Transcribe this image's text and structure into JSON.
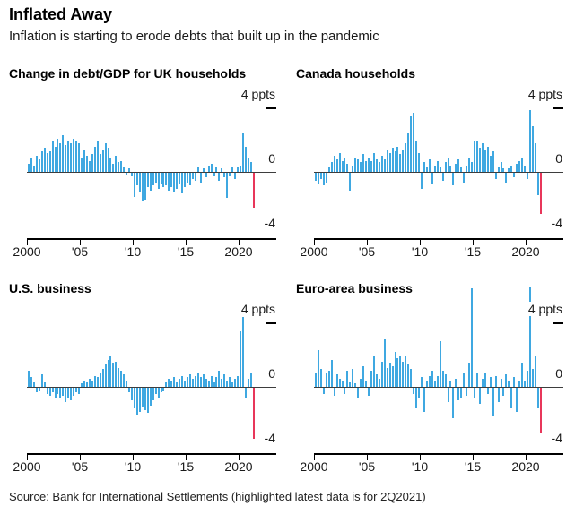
{
  "header": {
    "title": "Inflated Away",
    "subtitle": "Inflation is starting to erode debts that built up in the pandemic"
  },
  "footer": {
    "source": "Source: Bank for International Settlements (highlighted latest data is for 2Q2021)"
  },
  "axis": {
    "top_label": "4 ppts",
    "zero_label": "0",
    "bottom_label": "-4",
    "x_ticks": [
      "2000",
      "'05",
      "'10",
      "'15",
      "2020"
    ]
  },
  "colors": {
    "bar": "#3fa8e1",
    "highlight": "#e8365a",
    "zero_line": "#3d3d3d",
    "baseline": "#000000"
  },
  "chart_data": [
    {
      "type": "bar",
      "title": "Change in debt/GDP for UK households",
      "ylabel": "ppts",
      "ylim": [
        -4,
        4
      ],
      "x_range": "2000Q1 to 2021Q2 quarterly",
      "highlight_last": true,
      "highlight_note": "2Q2021",
      "values": [
        0.5,
        0.9,
        0.4,
        1.0,
        0.8,
        1.3,
        1.5,
        1.2,
        1.3,
        1.9,
        1.6,
        2.1,
        1.8,
        2.3,
        1.7,
        1.9,
        1.8,
        2.1,
        1.9,
        1.8,
        0.9,
        1.4,
        1.0,
        0.7,
        1.1,
        1.6,
        2.0,
        1.1,
        1.4,
        1.8,
        1.5,
        0.9,
        0.5,
        1.0,
        0.6,
        0.7,
        0.3,
        -0.1,
        0.2,
        -0.2,
        -1.5,
        -0.8,
        -1.2,
        -1.8,
        -1.7,
        -0.9,
        -1.1,
        -0.8,
        -0.6,
        -1.0,
        -0.7,
        -0.9,
        -0.8,
        -1.1,
        -0.9,
        -1.2,
        -1.0,
        -0.7,
        -1.3,
        -0.9,
        -0.6,
        -0.8,
        -0.4,
        -0.5,
        0.3,
        -0.6,
        0.2,
        -0.3,
        0.4,
        0.5,
        -0.2,
        0.3,
        -0.5,
        0.2,
        -0.3,
        -1.6,
        -0.2,
        0.3,
        -0.4,
        0.3,
        0.4,
        2.5,
        1.6,
        0.9,
        0.6,
        -2.2
      ]
    },
    {
      "type": "bar",
      "title": "Canada households",
      "ylabel": "ppts",
      "ylim": [
        -4,
        4
      ],
      "x_range": "2000Q1 to 2021Q2 quarterly",
      "highlight_last": true,
      "highlight_note": "2Q2021",
      "values": [
        -0.5,
        -0.7,
        -0.4,
        -0.8,
        -0.6,
        0.3,
        0.6,
        1.0,
        0.8,
        1.2,
        0.7,
        0.9,
        0.5,
        -1.1,
        0.4,
        0.9,
        0.8,
        0.6,
        1.1,
        0.7,
        0.9,
        0.7,
        1.2,
        0.8,
        0.6,
        1.0,
        0.8,
        1.4,
        1.2,
        1.5,
        1.3,
        1.6,
        1.1,
        1.4,
        1.8,
        2.5,
        3.5,
        3.7,
        2.0,
        1.2,
        -1.0,
        0.6,
        0.3,
        0.8,
        -0.7,
        0.4,
        0.7,
        0.3,
        -0.5,
        0.6,
        0.9,
        0.4,
        -0.8,
        0.5,
        0.8,
        0.3,
        -0.6,
        0.4,
        0.9,
        0.6,
        1.9,
        2.0,
        1.5,
        1.8,
        1.4,
        1.6,
        1.0,
        1.3,
        -0.4,
        0.3,
        0.6,
        0.2,
        -0.6,
        0.2,
        0.4,
        -0.3,
        0.5,
        0.7,
        0.9,
        0.4,
        -0.4,
        3.9,
        2.9,
        1.8,
        -1.4,
        -2.6
      ]
    },
    {
      "type": "bar",
      "title": "U.S. business",
      "ylabel": "ppts",
      "ylim": [
        -4,
        4
      ],
      "x_range": "2000Q1 to 2021Q2 quarterly",
      "highlight_last": true,
      "highlight_note": "2Q2021",
      "values": [
        1.0,
        0.6,
        0.3,
        -0.3,
        -0.2,
        0.8,
        0.3,
        -0.4,
        -0.5,
        -0.3,
        -0.6,
        -0.4,
        -0.7,
        -0.5,
        -0.9,
        -0.6,
        -0.8,
        -0.5,
        -0.3,
        -0.4,
        0.2,
        0.4,
        0.3,
        0.5,
        0.4,
        0.7,
        0.6,
        0.9,
        1.1,
        1.4,
        1.7,
        1.9,
        1.5,
        1.6,
        1.2,
        1.0,
        0.8,
        0.4,
        -0.3,
        -0.8,
        -1.3,
        -1.7,
        -1.5,
        -1.2,
        -1.4,
        -1.6,
        -1.1,
        -0.8,
        -0.4,
        -0.6,
        -0.3,
        -0.2,
        0.3,
        0.5,
        0.4,
        0.6,
        0.3,
        0.5,
        0.7,
        0.4,
        0.6,
        0.8,
        0.5,
        0.7,
        0.9,
        0.6,
        0.8,
        0.5,
        0.4,
        0.7,
        0.3,
        0.6,
        1.0,
        0.5,
        0.8,
        0.4,
        0.6,
        0.3,
        0.5,
        0.7,
        3.5,
        4.4,
        -0.6,
        0.5,
        0.9,
        -3.2
      ]
    },
    {
      "type": "bar",
      "title": "Euro-area business",
      "ylabel": "ppts",
      "ylim": [
        -4,
        4
      ],
      "x_range": "2000Q1 to 2021Q2 quarterly",
      "highlight_last": true,
      "highlight_note": "2Q2021",
      "values": [
        0.9,
        2.3,
        1.1,
        -0.4,
        0.9,
        1.0,
        1.7,
        -0.5,
        0.8,
        0.5,
        0.4,
        -0.4,
        1.0,
        0.3,
        1.1,
        0.2,
        -0.6,
        0.5,
        1.3,
        0.4,
        -0.5,
        1.0,
        1.9,
        0.8,
        0.5,
        1.6,
        3.0,
        1.2,
        1.5,
        1.3,
        2.2,
        1.8,
        1.9,
        1.6,
        2.0,
        1.4,
        1.1,
        -0.4,
        -1.3,
        -0.6,
        0.6,
        -1.5,
        0.4,
        0.7,
        1.0,
        0.4,
        0.7,
        2.9,
        1.0,
        0.8,
        -0.9,
        0.4,
        -1.9,
        0.5,
        -0.8,
        -0.7,
        0.9,
        -0.5,
        1.5,
        6.2,
        -0.7,
        0.9,
        -1.0,
        0.5,
        0.9,
        -0.4,
        0.6,
        -1.8,
        0.7,
        -0.9,
        0.5,
        -0.5,
        0.8,
        0.4,
        -1.3,
        0.6,
        -1.5,
        0.4,
        1.5,
        0.4,
        1.0,
        6.3,
        1.1,
        1.9,
        -1.3,
        -2.9
      ]
    }
  ]
}
